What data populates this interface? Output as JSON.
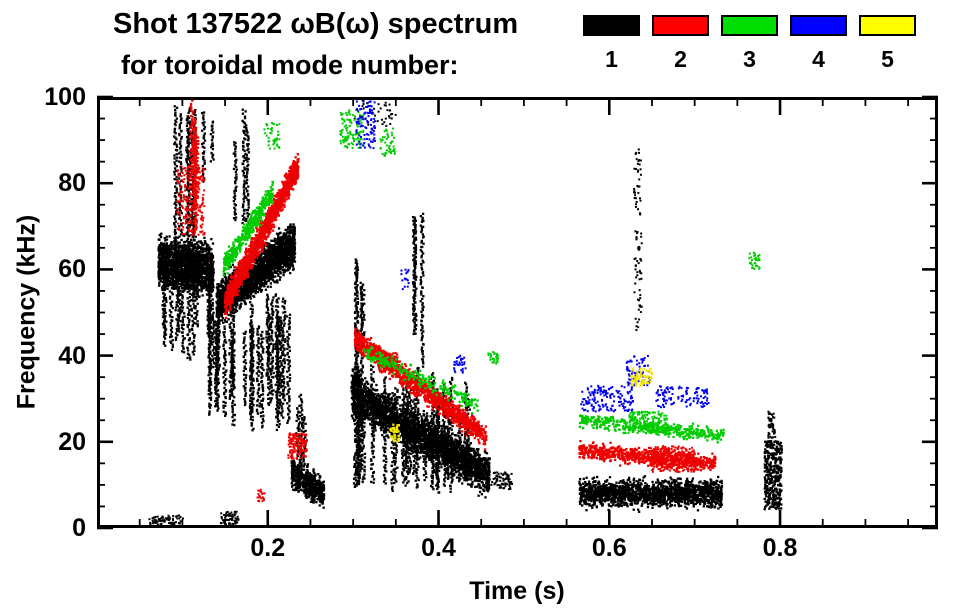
{
  "chart_data": {
    "type": "scatter",
    "title_line1": "Shot 137522 ωB(ω) spectrum",
    "title_line2": "for toroidal mode number:",
    "xlabel": "Time (s)",
    "ylabel": "Frequency (kHz)",
    "xlim": [
      0.0,
      0.985
    ],
    "ylim": [
      0,
      100
    ],
    "xticks": {
      "values": [
        0.2,
        0.4,
        0.6,
        0.8
      ],
      "labels": [
        "0.2",
        "0.4",
        "0.6",
        "0.8"
      ],
      "minor_step": 0.05
    },
    "yticks": {
      "values": [
        0,
        20,
        40,
        60,
        80,
        100
      ],
      "labels": [
        "0",
        "20",
        "40",
        "60",
        "80",
        "100"
      ],
      "minor_step": 5
    },
    "grid": false,
    "legend_position": "top-right",
    "legend": [
      {
        "label": "1",
        "color": "#000000"
      },
      {
        "label": "2",
        "color": "#ff0000"
      },
      {
        "label": "3",
        "color": "#00dd00"
      },
      {
        "label": "4",
        "color": "#0000ff"
      },
      {
        "label": "5",
        "color": "#ffff00"
      }
    ],
    "series": [
      {
        "name": "toroidal mode n=1",
        "color": "#000000",
        "clusters": [
          {
            "kind": "blob",
            "t": [
              0.06,
              0.102
            ],
            "f": [
              0.8,
              3.0
            ],
            "n": 70,
            "sz": 2
          },
          {
            "kind": "blob",
            "t": [
              0.144,
              0.166
            ],
            "f": [
              0.8,
              3.8
            ],
            "n": 60,
            "sz": 2
          },
          {
            "kind": "band",
            "t": [
              0.072,
              0.136
            ],
            "f": [
              62,
              60
            ],
            "spread": 5.5,
            "n": 1700
          },
          {
            "kind": "streaks",
            "t": [
              0.076,
              0.136
            ],
            "f_top": [
              55,
              66
            ],
            "f_bot": [
              38,
              50
            ],
            "count": 12
          },
          {
            "kind": "streaks",
            "t": [
              0.09,
              0.118
            ],
            "f_top": [
              86,
              100
            ],
            "f_bot": [
              55,
              70
            ],
            "count": 6
          },
          {
            "kind": "streaks",
            "t": [
              0.124,
              0.136
            ],
            "f_top": [
              94,
              100
            ],
            "f_bot": [
              78,
              88
            ],
            "count": 2
          },
          {
            "kind": "streaks",
            "t": [
              0.16,
              0.178
            ],
            "f_top": [
              88,
              97
            ],
            "f_bot": [
              70,
              80
            ],
            "count": 3
          },
          {
            "kind": "band",
            "t": [
              0.14,
              0.232
            ],
            "f": [
              52,
              66
            ],
            "spread": 4.5,
            "n": 2400
          },
          {
            "kind": "streaks",
            "t": [
              0.132,
              0.228
            ],
            "f_top": [
              44,
              58
            ],
            "f_bot": [
              22,
              38
            ],
            "count": 26
          },
          {
            "kind": "streaks",
            "t": [
              0.232,
              0.25
            ],
            "f_top": [
              24,
              32
            ],
            "f_bot": [
              12,
              18
            ],
            "count": 3
          },
          {
            "kind": "band",
            "t": [
              0.228,
              0.266
            ],
            "f": [
              13,
              8
            ],
            "spread": 3.2,
            "n": 600
          },
          {
            "kind": "band",
            "t": [
              0.298,
              0.46
            ],
            "f": [
              31,
              12
            ],
            "spread": 4.5,
            "n": 2800
          },
          {
            "kind": "streaks",
            "t": [
              0.3,
              0.452
            ],
            "f_top": [
              26,
              38
            ],
            "f_bot": [
              8,
              14
            ],
            "count": 28
          },
          {
            "kind": "streaks",
            "t": [
              0.299,
              0.315
            ],
            "f_top": [
              56,
              66
            ],
            "f_bot": [
              32,
              42
            ],
            "count": 4
          },
          {
            "kind": "streaks",
            "t": [
              0.368,
              0.384
            ],
            "f_top": [
              70,
              78
            ],
            "f_bot": [
              36,
              46
            ],
            "count": 3
          },
          {
            "kind": "blob",
            "t": [
              0.3,
              0.352
            ],
            "f": [
              93,
              100
            ],
            "n": 45,
            "sz": 2
          },
          {
            "kind": "blob",
            "t": [
              0.462,
              0.488
            ],
            "f": [
              9,
              13
            ],
            "n": 70,
            "sz": 2
          },
          {
            "kind": "band",
            "t": [
              0.565,
              0.732
            ],
            "f": [
              8,
              8
            ],
            "spread": 3.0,
            "n": 1700
          },
          {
            "kind": "blob",
            "t": [
              0.629,
              0.638
            ],
            "f": [
              45,
              88
            ],
            "n": 90,
            "sz": 2
          },
          {
            "kind": "blob",
            "t": [
              0.782,
              0.802
            ],
            "f": [
              4,
              20
            ],
            "n": 320,
            "sz": 2.3
          },
          {
            "kind": "blob",
            "t": [
              0.786,
              0.795
            ],
            "f": [
              19,
              27
            ],
            "n": 60,
            "sz": 2
          }
        ]
      },
      {
        "name": "toroidal mode n=2",
        "color": "#ee0000",
        "clusters": [
          {
            "kind": "blob",
            "t": [
              0.094,
              0.126
            ],
            "f": [
              68,
              84
            ],
            "n": 220,
            "sz": 2
          },
          {
            "kind": "streaks",
            "t": [
              0.092,
              0.118
            ],
            "f_top": [
              90,
              100
            ],
            "f_bot": [
              70,
              80
            ],
            "count": 4
          },
          {
            "kind": "band",
            "t": [
              0.15,
              0.236
            ],
            "f": [
              52,
              84
            ],
            "spread": 3.0,
            "n": 1500
          },
          {
            "kind": "blob",
            "t": [
              0.188,
              0.197
            ],
            "f": [
              6,
              9
            ],
            "n": 20,
            "sz": 2
          },
          {
            "kind": "blob",
            "t": [
              0.224,
              0.246
            ],
            "f": [
              16,
              22
            ],
            "n": 140,
            "sz": 2
          },
          {
            "kind": "band",
            "t": [
              0.302,
              0.456
            ],
            "f": [
              44,
              21
            ],
            "spread": 2.4,
            "n": 1300
          },
          {
            "kind": "blob",
            "t": [
              0.33,
              0.352
            ],
            "f": [
              36,
              41
            ],
            "n": 120,
            "sz": 2
          },
          {
            "kind": "band",
            "t": [
              0.565,
              0.725
            ],
            "f": [
              18,
              15
            ],
            "spread": 1.8,
            "n": 800
          },
          {
            "kind": "blob",
            "t": [
              0.648,
              0.7
            ],
            "f": [
              13,
              19
            ],
            "n": 280,
            "sz": 2
          }
        ]
      },
      {
        "name": "toroidal mode n=3",
        "color": "#00cc00",
        "clusters": [
          {
            "kind": "band",
            "t": [
              0.148,
              0.206
            ],
            "f": [
              60,
              78
            ],
            "spread": 2.4,
            "n": 420
          },
          {
            "kind": "blob",
            "t": [
              0.196,
              0.214
            ],
            "f": [
              88,
              94
            ],
            "n": 40,
            "sz": 2
          },
          {
            "kind": "blob",
            "t": [
              0.285,
              0.312
            ],
            "f": [
              88,
              97
            ],
            "n": 110,
            "sz": 2
          },
          {
            "kind": "blob",
            "t": [
              0.332,
              0.35
            ],
            "f": [
              86,
              93
            ],
            "n": 45,
            "sz": 2
          },
          {
            "kind": "band",
            "t": [
              0.312,
              0.45
            ],
            "f": [
              41,
              28
            ],
            "spread": 1.8,
            "n": 240
          },
          {
            "kind": "blob",
            "t": [
              0.458,
              0.47
            ],
            "f": [
              38,
              41
            ],
            "n": 30,
            "sz": 2
          },
          {
            "kind": "band",
            "t": [
              0.565,
              0.734
            ],
            "f": [
              25,
              21.5
            ],
            "spread": 1.6,
            "n": 420
          },
          {
            "kind": "blob",
            "t": [
              0.622,
              0.668
            ],
            "f": [
              22,
              27
            ],
            "n": 170,
            "sz": 2
          },
          {
            "kind": "blob",
            "t": [
              0.764,
              0.776
            ],
            "f": [
              60,
              64
            ],
            "n": 35,
            "sz": 2
          }
        ]
      },
      {
        "name": "toroidal mode n=4",
        "color": "#0000ee",
        "clusters": [
          {
            "kind": "blob",
            "t": [
              0.304,
              0.326
            ],
            "f": [
              88,
              99
            ],
            "n": 90,
            "sz": 2
          },
          {
            "kind": "blob",
            "t": [
              0.355,
              0.366
            ],
            "f": [
              55,
              60
            ],
            "n": 18,
            "sz": 2
          },
          {
            "kind": "blob",
            "t": [
              0.418,
              0.432
            ],
            "f": [
              36,
              40
            ],
            "n": 28,
            "sz": 2
          },
          {
            "kind": "blob",
            "t": [
              0.566,
              0.628
            ],
            "f": [
              27,
              33
            ],
            "n": 150,
            "sz": 2
          },
          {
            "kind": "blob",
            "t": [
              0.62,
              0.648
            ],
            "f": [
              33,
              40
            ],
            "n": 70,
            "sz": 2
          },
          {
            "kind": "blob",
            "t": [
              0.655,
              0.718
            ],
            "f": [
              28,
              33
            ],
            "n": 110,
            "sz": 2
          }
        ]
      },
      {
        "name": "toroidal mode n=5",
        "color": "#f2e400",
        "clusters": [
          {
            "kind": "blob",
            "t": [
              0.344,
              0.354
            ],
            "f": [
              20,
              24
            ],
            "n": 40,
            "sz": 2.3
          },
          {
            "kind": "blob",
            "t": [
              0.626,
              0.65
            ],
            "f": [
              33,
              37
            ],
            "n": 55,
            "sz": 2.3
          }
        ]
      }
    ]
  }
}
